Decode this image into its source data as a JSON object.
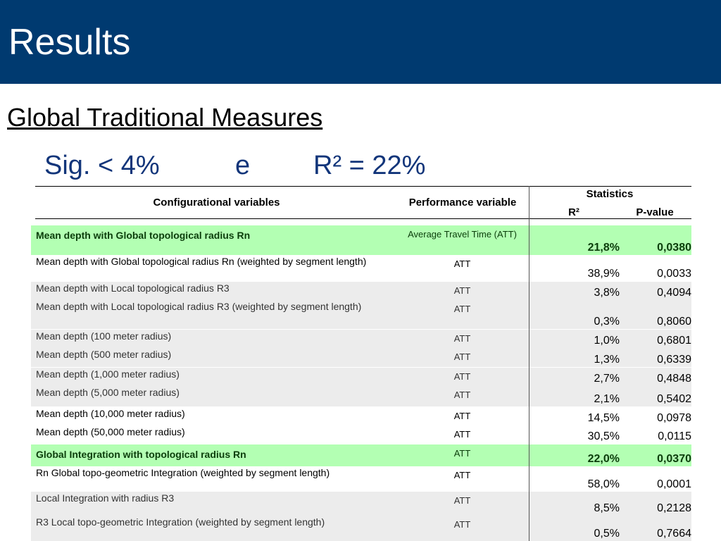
{
  "header": {
    "title": "Results"
  },
  "subtitle": "Global Traditional Measures",
  "significance": {
    "sig": "Sig. < 4%",
    "connector": "e",
    "r2": "R² = 22%"
  },
  "table": {
    "columns": {
      "variables": "Configurational variables",
      "performance": "Performance variable",
      "statistics": "Statistics",
      "r2": "R²",
      "pvalue": "P-value"
    },
    "rows": [
      {
        "variable": "Mean depth with Global topological radius Rn",
        "performance": "Average Travel Time (ATT)",
        "r2": "21,8%",
        "pvalue": "0,0380",
        "fill": "#b3ffb3",
        "bold": true
      },
      {
        "variable": "Mean depth with Global topological radius Rn (weighted by segment length)",
        "performance": "ATT",
        "r2": "38,9%",
        "pvalue": "0,0033",
        "fill": "#ffffff",
        "bold": false
      },
      {
        "variable": "Mean depth with Local topological radius R3",
        "performance": "ATT",
        "r2": "3,8%",
        "pvalue": "0,4094",
        "fill": "#ececec",
        "bold": false
      },
      {
        "variable": "Mean depth with Local topological radius R3 (weighted by segment length)",
        "performance": "ATT",
        "r2": "0,3%",
        "pvalue": "0,8060",
        "fill": "#ececec",
        "bold": false
      },
      {
        "variable": "Mean depth (100 meter radius)",
        "performance": "ATT",
        "r2": "1,0%",
        "pvalue": "0,6801",
        "fill": "#ececec",
        "bold": false
      },
      {
        "variable": "Mean depth (500 meter radius)",
        "performance": "ATT",
        "r2": "1,3%",
        "pvalue": "0,6339",
        "fill": "#ececec",
        "bold": false
      },
      {
        "variable": "Mean depth (1,000 meter radius)",
        "performance": "ATT",
        "r2": "2,7%",
        "pvalue": "0,4848",
        "fill": "#ececec",
        "bold": false
      },
      {
        "variable": "Mean depth (5,000 meter radius)",
        "performance": "ATT",
        "r2": "2,1%",
        "pvalue": "0,5402",
        "fill": "#ececec",
        "bold": false
      },
      {
        "variable": "Mean depth (10,000 meter radius)",
        "performance": "ATT",
        "r2": "14,5%",
        "pvalue": "0,0978",
        "fill": "#ffffff",
        "bold": false
      },
      {
        "variable": "Mean depth (50,000 meter radius)",
        "performance": "ATT",
        "r2": "30,5%",
        "pvalue": "0,0115",
        "fill": "#ffffff",
        "bold": false
      },
      {
        "variable": "Global Integration with topological radius Rn",
        "performance": "ATT",
        "r2": "22,0%",
        "pvalue": "0,0370",
        "fill": "#b3ffb3",
        "bold": true
      },
      {
        "variable": "Rn Global topo-geometric Integration (weighted by segment length)",
        "performance": "ATT",
        "r2": "58,0%",
        "pvalue": "0,0001",
        "fill": "#ffffff",
        "bold": false
      },
      {
        "variable": "Local Integration with radius R3",
        "performance": "ATT",
        "r2": "8,5%",
        "pvalue": "0,2128",
        "fill": "#ececec",
        "bold": false
      },
      {
        "variable": "R3 Local topo-geometric Integration (weighted by segment length)",
        "performance": "ATT",
        "r2": "0,5%",
        "pvalue": "0,7664",
        "fill": "#ececec",
        "bold": false
      }
    ]
  }
}
